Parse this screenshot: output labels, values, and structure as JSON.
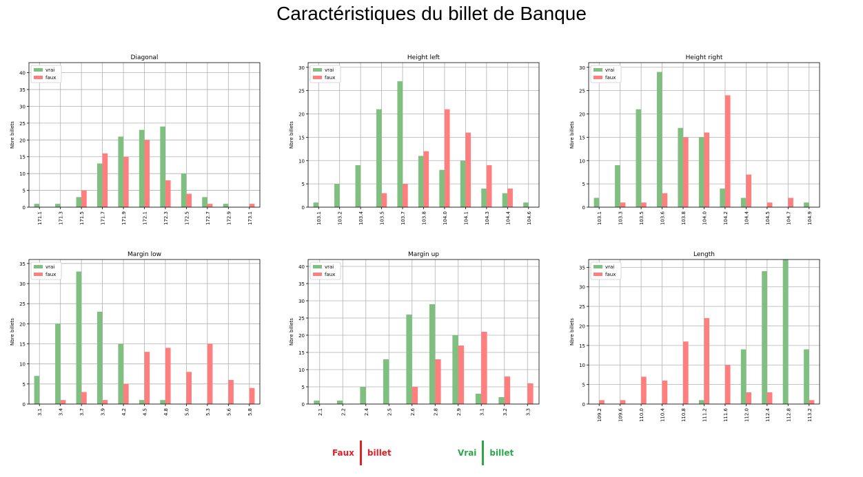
{
  "main_title": "Caractéristiques du billet de Banque",
  "colors": {
    "vrai": "#7fbf7f",
    "faux": "#ff7f7f",
    "faux_text": "#e02028",
    "vrai_text": "#2aa84a"
  },
  "bottom_legend": {
    "faux": {
      "left": "Faux",
      "right": "billet"
    },
    "vrai": {
      "left": "Vrai",
      "right": "billet"
    }
  },
  "chart_data": [
    {
      "type": "bar",
      "title": "Diagonal",
      "ylabel": "Nbre billets",
      "ylim": [
        0,
        43
      ],
      "yticks": [
        0,
        5,
        10,
        15,
        20,
        25,
        30,
        35,
        40
      ],
      "legend": "top-left",
      "grid": true,
      "categories": [
        "171.1",
        "171.3",
        "171.5",
        "171.7",
        "171.9",
        "172.1",
        "172.3",
        "172.5",
        "172.7",
        "172.9",
        "173.1"
      ],
      "series": [
        {
          "name": "vrai",
          "values": [
            1,
            1,
            3,
            13,
            21,
            23,
            24,
            10,
            3,
            1,
            0
          ]
        },
        {
          "name": "faux",
          "values": [
            0,
            0,
            5,
            16,
            15,
            20,
            8,
            4,
            1,
            0,
            1
          ]
        }
      ]
    },
    {
      "type": "bar",
      "title": "Height left",
      "ylabel": "Nbre billets",
      "ylim": [
        0,
        31
      ],
      "yticks": [
        0,
        5,
        10,
        15,
        20,
        25,
        30
      ],
      "legend": "top-left",
      "grid": true,
      "categories": [
        "103.1",
        "103.2",
        "103.4",
        "103.5",
        "103.7",
        "103.8",
        "104.0",
        "104.1",
        "104.3",
        "104.4",
        "104.6"
      ],
      "series": [
        {
          "name": "vrai",
          "values": [
            1,
            5,
            9,
            21,
            27,
            11,
            8,
            10,
            4,
            3,
            1
          ]
        },
        {
          "name": "faux",
          "values": [
            0,
            0,
            0,
            3,
            5,
            12,
            21,
            16,
            9,
            4,
            0
          ]
        }
      ]
    },
    {
      "type": "bar",
      "title": "Height right",
      "ylabel": "Nbre billets",
      "ylim": [
        0,
        31
      ],
      "yticks": [
        0,
        5,
        10,
        15,
        20,
        25,
        30
      ],
      "legend": "top-left",
      "grid": true,
      "categories": [
        "103.1",
        "103.3",
        "103.5",
        "103.6",
        "103.8",
        "104.0",
        "104.2",
        "104.4",
        "104.5",
        "104.7",
        "104.9"
      ],
      "series": [
        {
          "name": "vrai",
          "values": [
            2,
            9,
            21,
            29,
            17,
            15,
            4,
            2,
            0,
            0,
            1
          ]
        },
        {
          "name": "faux",
          "values": [
            0,
            1,
            1,
            3,
            15,
            16,
            24,
            7,
            1,
            2,
            0
          ]
        }
      ]
    },
    {
      "type": "bar",
      "title": "Margin low",
      "ylabel": "Nbre billets",
      "ylim": [
        0,
        36
      ],
      "yticks": [
        0,
        5,
        10,
        15,
        20,
        25,
        30,
        35
      ],
      "legend": "top-left",
      "grid": true,
      "categories": [
        "3.1",
        "3.4",
        "3.7",
        "3.9",
        "4.2",
        "4.5",
        "4.8",
        "5.0",
        "5.3",
        "5.6",
        "5.8"
      ],
      "series": [
        {
          "name": "vrai",
          "values": [
            7,
            20,
            33,
            23,
            15,
            1,
            1,
            0,
            0,
            0,
            0
          ]
        },
        {
          "name": "faux",
          "values": [
            0,
            1,
            3,
            1,
            5,
            13,
            14,
            8,
            15,
            6,
            4
          ]
        }
      ]
    },
    {
      "type": "bar",
      "title": "Margin up",
      "ylabel": "Nbre billets",
      "ylim": [
        0,
        42
      ],
      "yticks": [
        0,
        5,
        10,
        15,
        20,
        25,
        30,
        35,
        40
      ],
      "legend": "top-left",
      "grid": true,
      "categories": [
        "2.1",
        "2.2",
        "2.4",
        "2.5",
        "2.6",
        "2.8",
        "2.9",
        "3.1",
        "3.2",
        "3.3"
      ],
      "series": [
        {
          "name": "vrai",
          "values": [
            1,
            1,
            5,
            13,
            26,
            29,
            20,
            3,
            2,
            0
          ]
        },
        {
          "name": "faux",
          "values": [
            0,
            0,
            0,
            0,
            5,
            13,
            17,
            21,
            8,
            6
          ]
        }
      ]
    },
    {
      "type": "bar",
      "title": "Length",
      "ylabel": "Nbre billets",
      "ylim": [
        0,
        37
      ],
      "yticks": [
        0,
        5,
        10,
        15,
        20,
        25,
        30,
        35
      ],
      "legend": "top-left",
      "grid": true,
      "categories": [
        "109.2",
        "109.6",
        "110.0",
        "110.4",
        "110.8",
        "111.2",
        "111.6",
        "112.0",
        "112.4",
        "112.8",
        "113.2"
      ],
      "series": [
        {
          "name": "vrai",
          "values": [
            0,
            0,
            0,
            0,
            0,
            1,
            0,
            14,
            34,
            37,
            14
          ]
        },
        {
          "name": "faux",
          "values": [
            1,
            1,
            7,
            6,
            16,
            22,
            10,
            3,
            3,
            0,
            1
          ]
        }
      ]
    }
  ]
}
